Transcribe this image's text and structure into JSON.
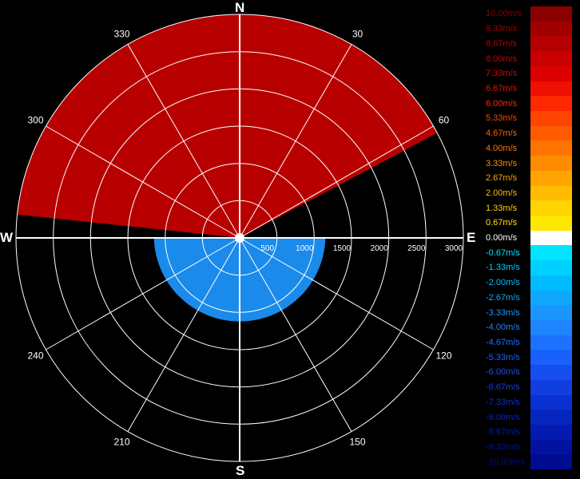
{
  "compass": {
    "n": "N",
    "s": "S",
    "e": "E",
    "w": "W"
  },
  "chart_data": {
    "type": "polar-radar",
    "range_max": 3000,
    "range_ticks": [
      500,
      1000,
      1500,
      2000,
      2500,
      3000
    ],
    "range_tick_labels": [
      "500",
      "1000",
      "1500",
      "2000",
      "2500",
      "3000"
    ],
    "azimuth_ticks": [
      30,
      60,
      120,
      150,
      210,
      240,
      300,
      330
    ],
    "azimuth_tick_labels": [
      "30",
      "60",
      "120",
      "150",
      "210",
      "240",
      "300",
      "330"
    ],
    "sectors": [
      {
        "name": "positive-sector",
        "az_from": 276,
        "az_to": 62,
        "range_from": 0,
        "range_to": 3000,
        "velocity_ms": 8.0
      },
      {
        "name": "negative-patch",
        "az_from": 90,
        "az_to": 270,
        "range_from": 0,
        "range_to": 1150,
        "velocity_ms": -3.33
      }
    ],
    "legend": {
      "labels": [
        "10.00m/s",
        "9.33m/s",
        "8.67m/s",
        "8.00m/s",
        "7.33m/s",
        "6.67m/s",
        "6.00m/s",
        "5.33m/s",
        "4.67m/s",
        "4.00m/s",
        "3.33m/s",
        "2.67m/s",
        "2.00m/s",
        "1.33m/s",
        "0.67m/s",
        "0.00m/s",
        "-0.67m/s",
        "-1.33m/s",
        "-2.00m/s",
        "-2.67m/s",
        "-3.33m/s",
        "-4.00m/s",
        "-4.67m/s",
        "-5.33m/s",
        "-6.00m/s",
        "-6.67m/s",
        "-7.33m/s",
        "-8.00m/s",
        "-8.67m/s",
        "-9.33m/s",
        "-10.00m/s"
      ],
      "colors": [
        "#8a0000",
        "#a00000",
        "#b40000",
        "#c80000",
        "#dc0000",
        "#ee1000",
        "#ff2800",
        "#ff4400",
        "#ff5c00",
        "#ff7400",
        "#ff8c00",
        "#ffa400",
        "#ffbc00",
        "#ffd400",
        "#ffe800",
        "#ffffff",
        "#00e4ff",
        "#00d0ff",
        "#00bcff",
        "#10a8ff",
        "#1c96ff",
        "#1e84ff",
        "#1c72ff",
        "#1a60ff",
        "#164ef0",
        "#103ee0",
        "#0a30d0",
        "#0626c0",
        "#041ab0",
        "#0212a0",
        "#000c90"
      ]
    }
  }
}
